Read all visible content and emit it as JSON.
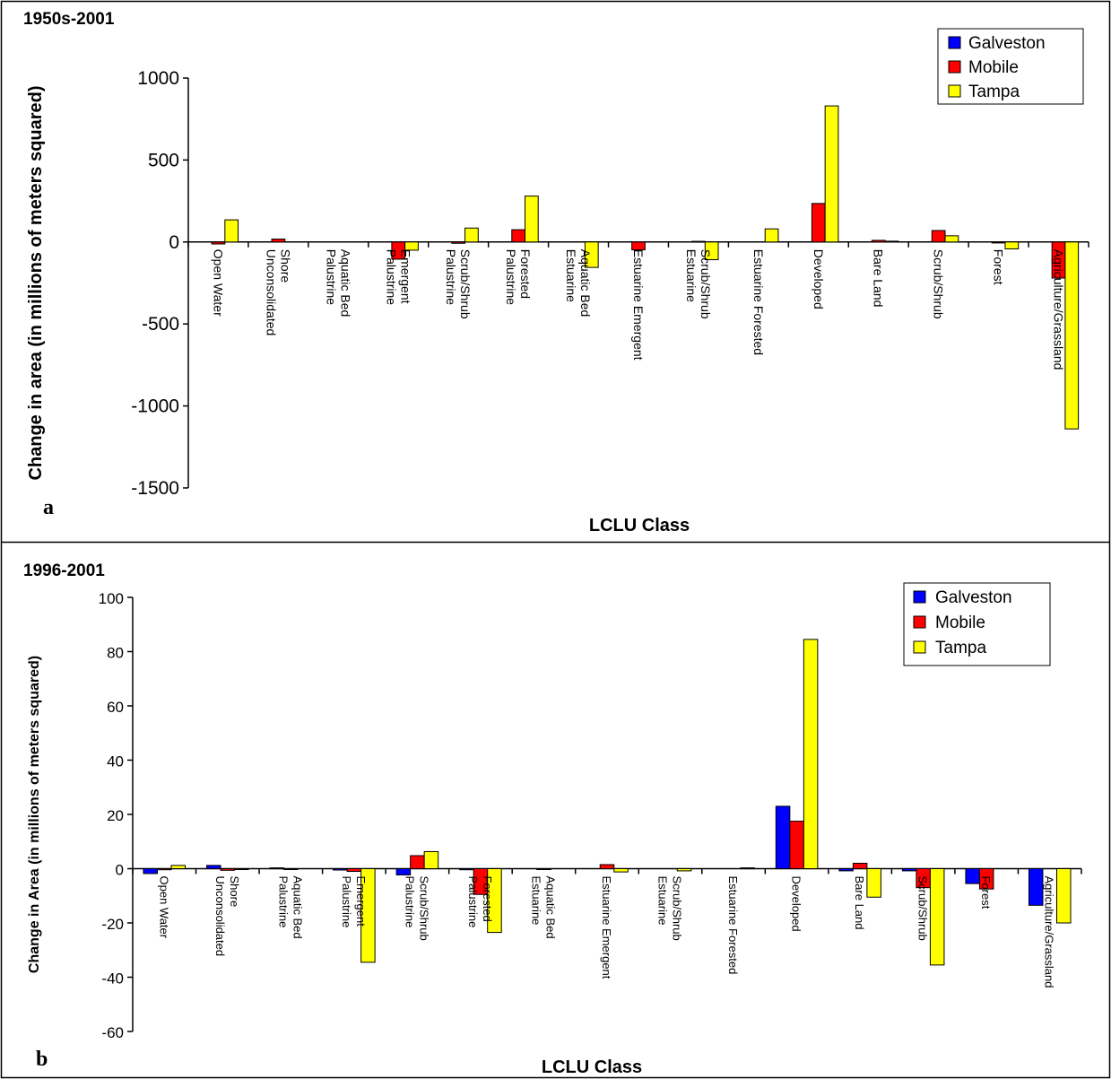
{
  "colors": {
    "Galveston": "#0000ff",
    "Mobile": "#ff0000",
    "Tampa": "#ffff00",
    "border": "#000000"
  },
  "chart_data": [
    {
      "type": "bar",
      "panel_letter": "a",
      "title": "1950s-2001",
      "xlabel": "LCLU Class",
      "ylabel": "Change in area (in millions of meters squared)",
      "ylim": [
        -1500,
        1000
      ],
      "yticks": [
        1000,
        500,
        0,
        -500,
        -1000,
        -1500
      ],
      "ytick_labels": [
        "1000",
        "500",
        "0",
        "-500",
        "-1000",
        "-1500"
      ],
      "grid": false,
      "legend_position": "top-right",
      "categories": [
        "Open Water",
        "Unconsolidated Shore",
        "Palustrine Aquatic Bed",
        "Palustrine Emergent",
        "Palustrine Scrub/Shrub",
        "Palustrine Forested",
        "Estuarine Aquatic Bed",
        "Estuarine Emergent",
        "Estuarine Scrub/Shrub",
        "Estuarine Forested",
        "Developed",
        "Bare Land",
        "Scrub/Shrub",
        "Forest",
        "Agriculture/Grassland"
      ],
      "series": [
        {
          "name": "Galveston",
          "values": [
            0,
            0,
            0,
            0,
            0,
            0,
            0,
            0,
            0,
            0,
            0,
            0,
            0,
            0,
            0
          ]
        },
        {
          "name": "Mobile",
          "values": [
            -12,
            18,
            0,
            -105,
            -8,
            75,
            0,
            -48,
            4,
            0,
            235,
            10,
            70,
            -6,
            -220
          ]
        },
        {
          "name": "Tampa",
          "values": [
            135,
            0,
            0,
            -50,
            85,
            280,
            -155,
            0,
            -108,
            80,
            830,
            5,
            38,
            -42,
            -1140
          ]
        }
      ]
    },
    {
      "type": "bar",
      "panel_letter": "b",
      "title": "1996-2001",
      "xlabel": "LCLU Class",
      "ylabel": "Change in Area (in millions of meters squared)",
      "ylim": [
        -60,
        100
      ],
      "yticks": [
        100,
        80,
        60,
        40,
        20,
        0,
        -20,
        -40,
        -60
      ],
      "ytick_labels": [
        "100",
        "80",
        "60",
        "40",
        "20",
        "0",
        "-20",
        "-40",
        "-60"
      ],
      "grid": false,
      "legend_position": "top-right",
      "categories": [
        "Open Water",
        "Unconsolidated Shore",
        "Palustrine Aquatic Bed",
        "Palustrine Emergent",
        "Palustrine Scrub/Shrub",
        "Palustrine Forested",
        "Estuarine Aquatic Bed",
        "Estuarine Emergent",
        "Estuarine Scrub/Shrub",
        "Estuarine Forested",
        "Developed",
        "Bare Land",
        "Scrub/Shrub",
        "Forest",
        "Agriculture/Grassland"
      ],
      "series": [
        {
          "name": "Galveston",
          "values": [
            -1.8,
            1.2,
            0.3,
            -0.5,
            -2.3,
            -0.4,
            0,
            0,
            0,
            0,
            23,
            -0.8,
            -0.8,
            -5.5,
            -13.5
          ]
        },
        {
          "name": "Mobile",
          "values": [
            -0.4,
            -0.6,
            -0.3,
            -1.0,
            4.8,
            -9.5,
            -0.3,
            1.5,
            0,
            0,
            17.5,
            2.0,
            -7.0,
            -7.5,
            0
          ]
        },
        {
          "name": "Tampa",
          "values": [
            1.2,
            -0.3,
            0,
            -34.5,
            6.3,
            -23.5,
            0,
            -1.2,
            -0.8,
            0.3,
            84.5,
            -10.5,
            -35.5,
            0,
            -20
          ]
        }
      ]
    }
  ]
}
